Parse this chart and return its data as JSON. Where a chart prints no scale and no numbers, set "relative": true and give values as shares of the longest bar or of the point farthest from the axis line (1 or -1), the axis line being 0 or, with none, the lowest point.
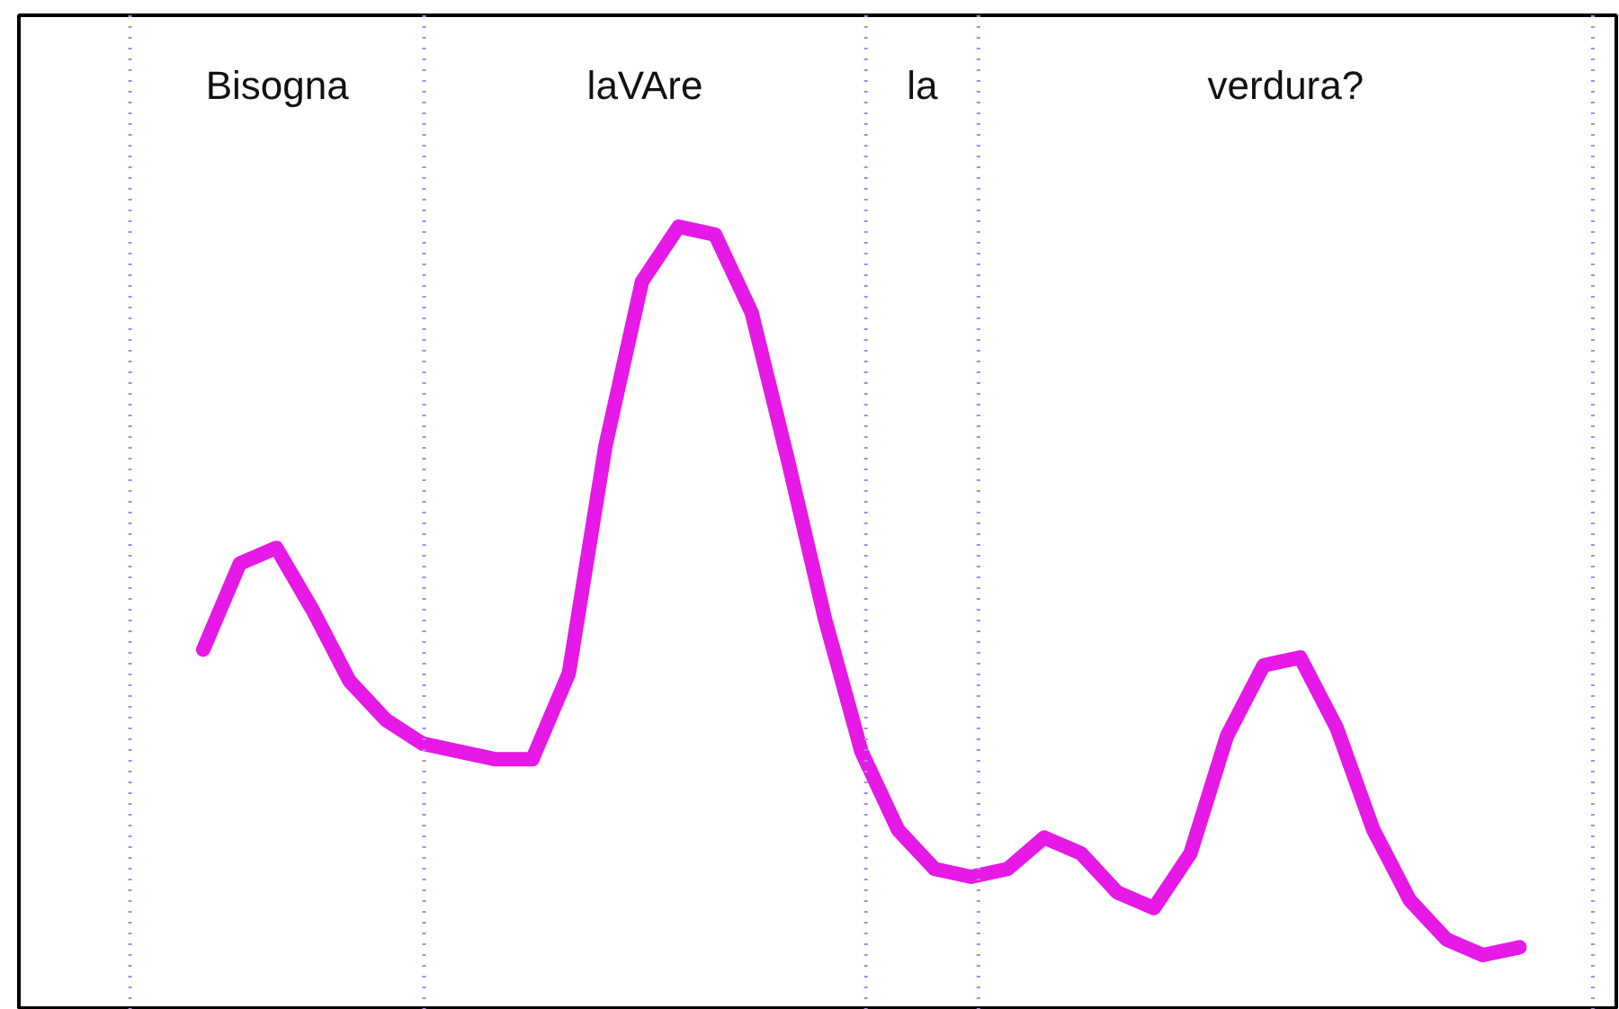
{
  "chart_data": {
    "type": "line",
    "relative": true,
    "tick_labels": false,
    "grid": false,
    "marker": "none",
    "line_style": "solid",
    "categories": [
      null,
      null,
      null,
      null,
      null,
      null,
      null,
      null,
      null,
      null,
      null,
      null,
      null,
      null,
      null,
      null,
      null,
      null,
      null,
      null,
      null,
      null,
      null,
      null,
      null,
      null,
      null,
      null,
      null,
      null,
      null,
      null,
      null,
      null,
      null,
      null,
      null
    ],
    "series": [
      {
        "color": "#e619e6",
        "values": [
          0.46,
          0.57,
          0.59,
          0.51,
          0.42,
          0.37,
          0.34,
          0.33,
          0.32,
          0.32,
          0.43,
          0.72,
          0.93,
          1.0,
          0.99,
          0.89,
          0.7,
          0.5,
          0.33,
          0.23,
          0.18,
          0.17,
          0.18,
          0.22,
          0.2,
          0.15,
          0.13,
          0.2,
          0.35,
          0.44,
          0.45,
          0.36,
          0.23,
          0.14,
          0.09,
          0.07,
          0.08
        ]
      }
    ],
    "annotations": [
      "Bisogna",
      "laVAre",
      "la",
      "verdura?"
    ]
  }
}
